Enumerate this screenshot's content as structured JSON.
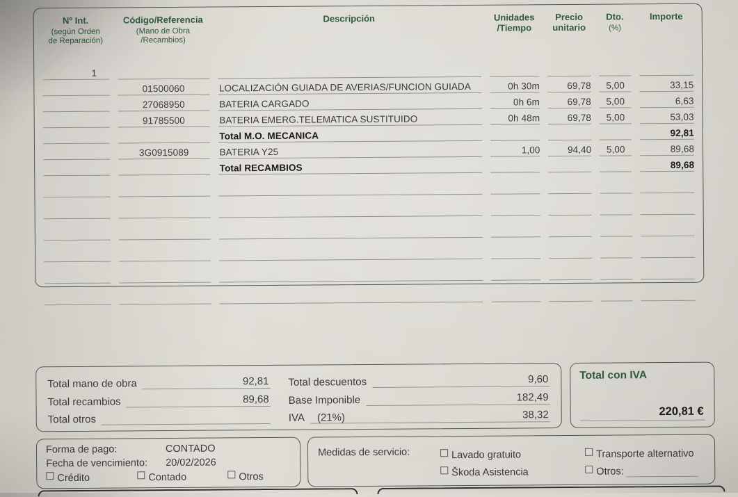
{
  "colors": {
    "accent_green": "#2f5a3f",
    "text": "#3a3a3c",
    "paper": "#d9d6cf"
  },
  "table": {
    "headers": {
      "num_title": "Nº Int.",
      "num_sub": "(según Orden\nde Reparación)",
      "code_title": "Código/Referencia",
      "code_sub": "(Mano de Obra\n/Recambios)",
      "desc_title": "Descripción",
      "units_title": "Unidades\n/Tiempo",
      "price_title": "Precio\nunitario",
      "dto_title": "Dto.",
      "dto_sub": "(%)",
      "importe_title": "Importe"
    },
    "rows": [
      {
        "num": "1",
        "code": "",
        "desc": "",
        "units": "",
        "price": "",
        "dto": "",
        "amount": ""
      },
      {
        "num": "",
        "code": "01500060",
        "desc": "LOCALIZACIÓN GUIADA DE AVERIAS/FUNCION GUIADA",
        "units": "0h 30m",
        "price": "69,78",
        "dto": "5,00",
        "amount": "33,15"
      },
      {
        "num": "",
        "code": "27068950",
        "desc": "BATERIA CARGADO",
        "units": "0h 6m",
        "price": "69,78",
        "dto": "5,00",
        "amount": "6,63"
      },
      {
        "num": "",
        "code": "91785500",
        "desc": "BATERIA EMERG.TELEMATICA SUSTITUIDO",
        "units": "0h 48m",
        "price": "69,78",
        "dto": "5,00",
        "amount": "53,03"
      },
      {
        "num": "",
        "code": "",
        "desc": "Total M.O. MECANICA",
        "units": "",
        "price": "",
        "dto": "",
        "amount": "92,81"
      },
      {
        "num": "",
        "code": "3G0915089",
        "desc": "BATERIA Y25",
        "units": "1,00",
        "price": "94,40",
        "dto": "5,00",
        "amount": "89,68"
      },
      {
        "num": "",
        "code": "",
        "desc": "Total RECAMBIOS",
        "units": "",
        "price": "",
        "dto": "",
        "amount": "89,68"
      },
      {
        "num": "",
        "code": "",
        "desc": "",
        "units": "",
        "price": "",
        "dto": "",
        "amount": ""
      },
      {
        "num": "",
        "code": "",
        "desc": "",
        "units": "",
        "price": "",
        "dto": "",
        "amount": ""
      },
      {
        "num": "",
        "code": "",
        "desc": "",
        "units": "",
        "price": "",
        "dto": "",
        "amount": ""
      },
      {
        "num": "",
        "code": "",
        "desc": "",
        "units": "",
        "price": "",
        "dto": "",
        "amount": ""
      },
      {
        "num": "",
        "code": "",
        "desc": "",
        "units": "",
        "price": "",
        "dto": "",
        "amount": ""
      },
      {
        "num": "",
        "code": "",
        "desc": "",
        "units": "",
        "price": "",
        "dto": "",
        "amount": ""
      }
    ]
  },
  "totals": {
    "left": [
      {
        "label": "Total mano de obra",
        "value": "92,81"
      },
      {
        "label": "Total recambios",
        "value": "89,68"
      },
      {
        "label": "Total otros",
        "value": ""
      }
    ],
    "right": [
      {
        "label": "Total descuentos",
        "value": "9,60"
      },
      {
        "label": "Base Imponible",
        "value": "182,49"
      },
      {
        "label": "IVA",
        "label_extra": "(21%)",
        "value": "38,32"
      }
    ],
    "total_iva": {
      "label": "Total con IVA",
      "value": "220,81 €"
    }
  },
  "payment": {
    "forma_label": "Forma de pago:",
    "forma_value": "CONTADO",
    "fecha_label": "Fecha de vencimiento:",
    "fecha_value": "20/02/2026",
    "checkboxes": [
      "Crédito",
      "Contado",
      "Otros"
    ]
  },
  "service": {
    "label": "Medidas de servicio:",
    "options": [
      "Lavado gratuito",
      "Škoda Asistencia",
      "Transporte alternativo",
      "Otros:"
    ]
  }
}
